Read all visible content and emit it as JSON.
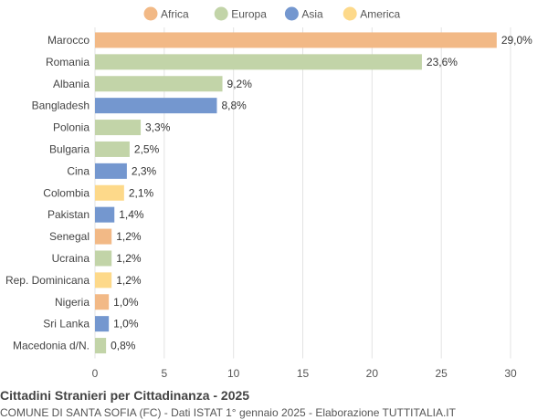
{
  "chart_data": {
    "type": "bar",
    "orientation": "horizontal",
    "categories": [
      "Marocco",
      "Romania",
      "Albania",
      "Bangladesh",
      "Polonia",
      "Bulgaria",
      "Cina",
      "Colombia",
      "Pakistan",
      "Senegal",
      "Ucraina",
      "Rep. Dominicana",
      "Nigeria",
      "Sri Lanka",
      "Macedonia d/N."
    ],
    "values": [
      29.0,
      23.6,
      9.2,
      8.8,
      3.3,
      2.5,
      2.3,
      2.1,
      1.4,
      1.2,
      1.2,
      1.2,
      1.0,
      1.0,
      0.8
    ],
    "value_labels": [
      "29,0%",
      "23,6%",
      "9,2%",
      "8,8%",
      "3,3%",
      "2,5%",
      "2,3%",
      "2,1%",
      "1,4%",
      "1,2%",
      "1,2%",
      "1,2%",
      "1,0%",
      "1,0%",
      "0,8%"
    ],
    "continents": [
      "Africa",
      "Europa",
      "Europa",
      "Asia",
      "Europa",
      "Europa",
      "Asia",
      "America",
      "Asia",
      "Africa",
      "Europa",
      "America",
      "Africa",
      "Asia",
      "Europa"
    ],
    "legend": [
      {
        "name": "Africa",
        "color": "#f2b986"
      },
      {
        "name": "Europa",
        "color": "#c2d4a8"
      },
      {
        "name": "Asia",
        "color": "#7497cf"
      },
      {
        "name": "America",
        "color": "#fdd98a"
      }
    ],
    "legend_position": "top-center",
    "xlim": [
      0,
      30
    ],
    "xticks": [
      0,
      5,
      10,
      15,
      20,
      25,
      30
    ],
    "grid": true,
    "title": "Cittadini Stranieri per Cittadinanza - 2025",
    "subtitle": "COMUNE DI SANTA SOFIA (FC) - Dati ISTAT 1° gennaio 2025 - Elaborazione TUTTITALIA.IT"
  }
}
